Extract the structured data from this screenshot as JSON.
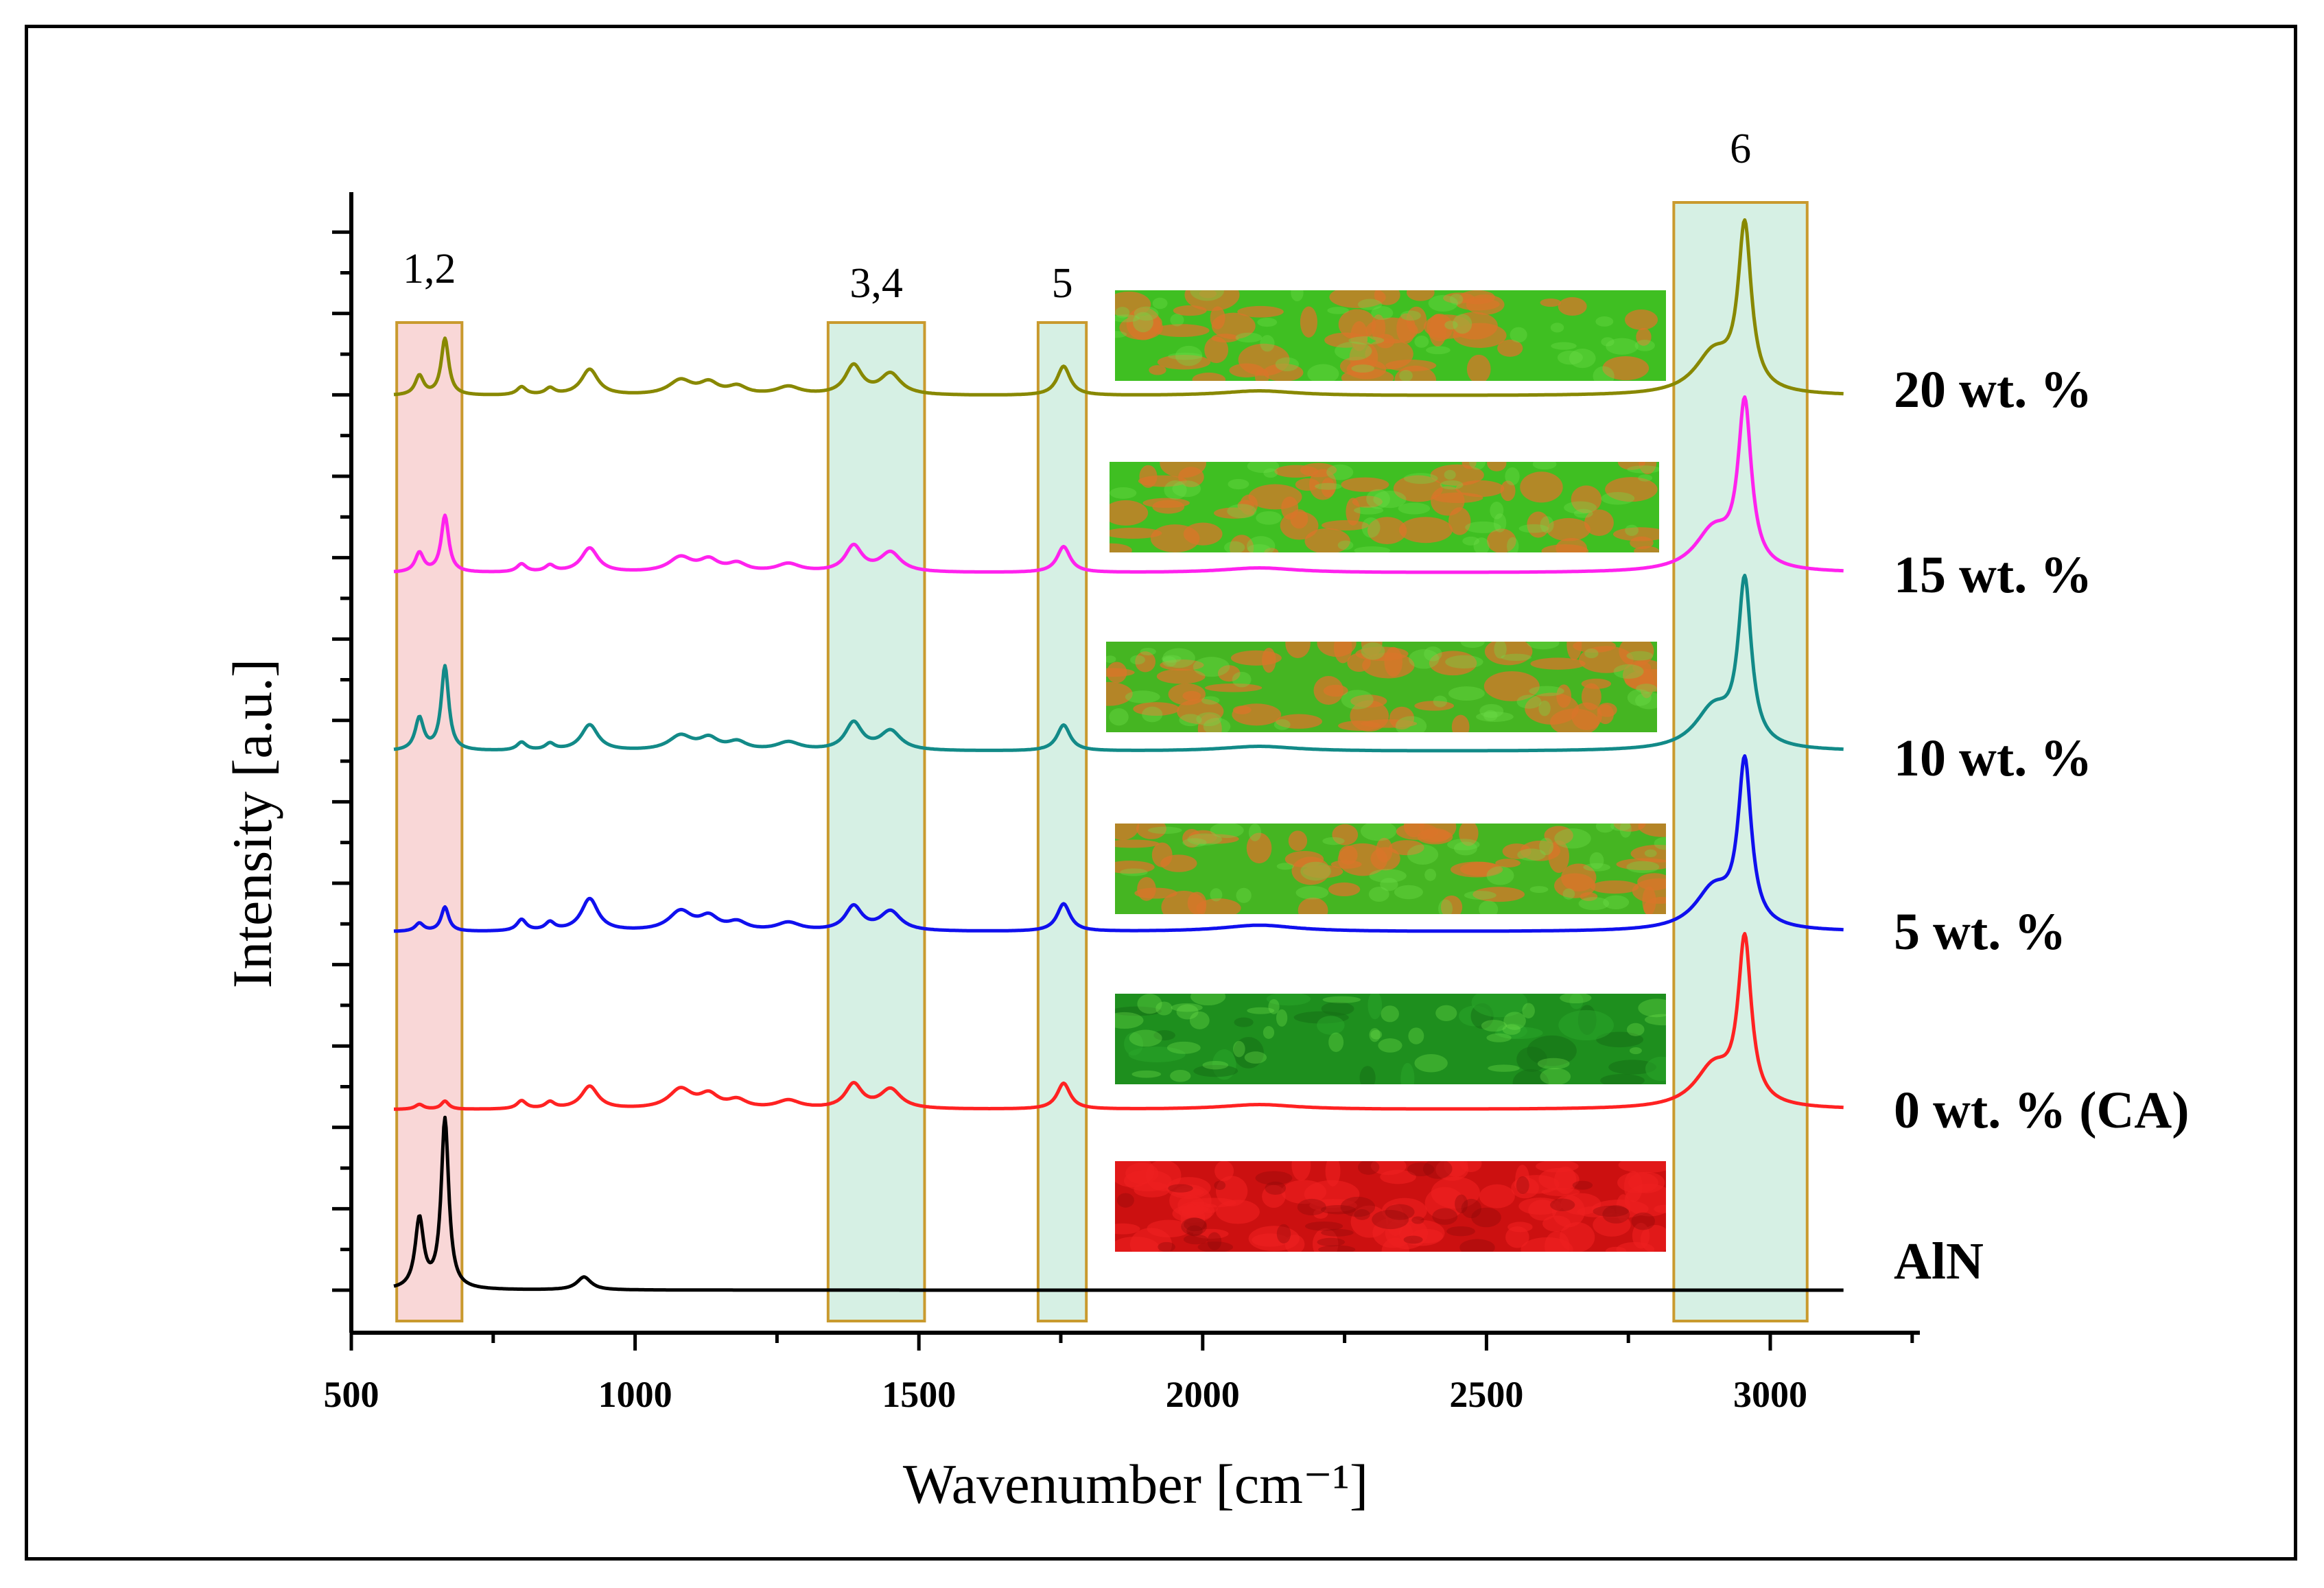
{
  "chart_data": {
    "type": "line",
    "title": "",
    "xlabel": "Wavenumber [cm⁻¹]",
    "ylabel": "Intensity [a.u.]",
    "xlim": [
      500,
      3250
    ],
    "x_ticks": [
      500,
      1000,
      1500,
      2000,
      2500,
      3000
    ],
    "x_tick_labels": [
      "500",
      "1000",
      "1500",
      "2000",
      "2500",
      "3000"
    ],
    "y_ticks_labeled": false,
    "x_range_data": [
      575,
      3130
    ],
    "regions": [
      {
        "label": "1,2",
        "x_start": 580,
        "x_end": 695,
        "color": "#f9d7d7"
      },
      {
        "label": "3,4",
        "x_start": 1340,
        "x_end": 1510,
        "color": "#d6f0e4"
      },
      {
        "label": "5",
        "x_start": 1710,
        "x_end": 1795,
        "color": "#d6f0e4"
      },
      {
        "label": "6",
        "x_start": 2830,
        "x_end": 3065,
        "color": "#d6f0e4"
      }
    ],
    "series": [
      {
        "name": "20 wt. %",
        "color": "#888800",
        "baseline": 5,
        "inset_color": "#3fbf22",
        "inset_spot": "#d9762a",
        "peaks": [
          [
            620,
            0.12,
            9
          ],
          [
            665,
            0.35,
            8
          ],
          [
            800,
            0.05,
            10
          ],
          [
            850,
            0.04,
            10
          ],
          [
            920,
            0.16,
            18
          ],
          [
            1080,
            0.09,
            25
          ],
          [
            1130,
            0.07,
            20
          ],
          [
            1180,
            0.05,
            20
          ],
          [
            1270,
            0.05,
            25
          ],
          [
            1385,
            0.18,
            18
          ],
          [
            1450,
            0.13,
            22
          ],
          [
            1755,
            0.18,
            14
          ],
          [
            2100,
            0.03,
            80
          ],
          [
            2900,
            0.25,
            40
          ],
          [
            2955,
            1.0,
            14
          ]
        ]
      },
      {
        "name": "15 wt. %",
        "color": "#ff22ee",
        "baseline": 4,
        "inset_color": "#3fbf22",
        "inset_spot": "#d9762a",
        "peaks": [
          [
            620,
            0.12,
            9
          ],
          [
            665,
            0.35,
            8
          ],
          [
            800,
            0.05,
            10
          ],
          [
            850,
            0.04,
            10
          ],
          [
            920,
            0.15,
            18
          ],
          [
            1080,
            0.09,
            25
          ],
          [
            1130,
            0.07,
            20
          ],
          [
            1180,
            0.05,
            20
          ],
          [
            1270,
            0.05,
            25
          ],
          [
            1385,
            0.16,
            18
          ],
          [
            1450,
            0.12,
            22
          ],
          [
            1755,
            0.16,
            14
          ],
          [
            2100,
            0.03,
            80
          ],
          [
            2900,
            0.25,
            40
          ],
          [
            2955,
            1.0,
            14
          ]
        ]
      },
      {
        "name": "10 wt. %",
        "color": "#128a88",
        "baseline": 3,
        "inset_color": "#45b522",
        "inset_spot": "#d9762a",
        "peaks": [
          [
            620,
            0.2,
            9
          ],
          [
            665,
            0.52,
            8
          ],
          [
            800,
            0.05,
            10
          ],
          [
            850,
            0.04,
            10
          ],
          [
            920,
            0.16,
            18
          ],
          [
            1080,
            0.09,
            25
          ],
          [
            1130,
            0.07,
            20
          ],
          [
            1180,
            0.05,
            20
          ],
          [
            1270,
            0.05,
            25
          ],
          [
            1385,
            0.17,
            18
          ],
          [
            1450,
            0.12,
            22
          ],
          [
            1755,
            0.16,
            14
          ],
          [
            2100,
            0.03,
            80
          ],
          [
            2900,
            0.25,
            40
          ],
          [
            2955,
            1.0,
            14
          ]
        ]
      },
      {
        "name": "5 wt. %",
        "color": "#1010ee",
        "baseline": 2,
        "inset_color": "#45b522",
        "inset_spot": "#d9762a",
        "peaks": [
          [
            620,
            0.05,
            9
          ],
          [
            665,
            0.15,
            8
          ],
          [
            800,
            0.07,
            10
          ],
          [
            850,
            0.05,
            10
          ],
          [
            920,
            0.2,
            18
          ],
          [
            1080,
            0.12,
            25
          ],
          [
            1130,
            0.08,
            20
          ],
          [
            1180,
            0.05,
            20
          ],
          [
            1270,
            0.05,
            25
          ],
          [
            1385,
            0.15,
            18
          ],
          [
            1450,
            0.12,
            22
          ],
          [
            1755,
            0.17,
            14
          ],
          [
            2100,
            0.04,
            80
          ],
          [
            2900,
            0.25,
            40
          ],
          [
            2955,
            1.0,
            14
          ]
        ]
      },
      {
        "name": "0 wt. % (CA)",
        "color": "#ff2222",
        "baseline": 1,
        "inset_color": "#1e8f1e",
        "inset_spot": "#1e8f1e",
        "peaks": [
          [
            620,
            0.03,
            9
          ],
          [
            665,
            0.05,
            8
          ],
          [
            800,
            0.05,
            10
          ],
          [
            850,
            0.04,
            10
          ],
          [
            920,
            0.14,
            18
          ],
          [
            1080,
            0.12,
            25
          ],
          [
            1130,
            0.08,
            20
          ],
          [
            1180,
            0.05,
            20
          ],
          [
            1270,
            0.05,
            25
          ],
          [
            1385,
            0.15,
            18
          ],
          [
            1450,
            0.12,
            22
          ],
          [
            1755,
            0.16,
            14
          ],
          [
            2100,
            0.03,
            80
          ],
          [
            2900,
            0.25,
            40
          ],
          [
            2955,
            1.0,
            14
          ]
        ]
      },
      {
        "name": "AlN",
        "color": "#000000",
        "baseline": 0,
        "inset_color": "#cc1010",
        "inset_spot": "#ee2020",
        "peaks": [
          [
            620,
            0.43,
            9
          ],
          [
            665,
            1.05,
            8
          ],
          [
            910,
            0.08,
            15
          ]
        ]
      }
    ]
  }
}
